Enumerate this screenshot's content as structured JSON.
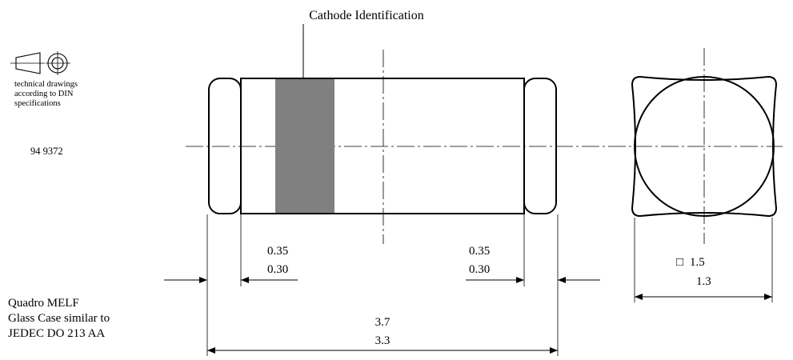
{
  "title": "Cathode Identification",
  "din_note": [
    "technical drawings",
    "according to DIN",
    "specifications"
  ],
  "drawing_number": "94 9372",
  "package_description": [
    "Quadro MELF",
    "Glass Case similar to",
    "JEDEC DO 213 AA"
  ],
  "dimensions": {
    "left_cap": {
      "max": "0.35",
      "min": "0.30"
    },
    "right_cap": {
      "max": "0.35",
      "min": "0.30"
    },
    "overall_length": {
      "max": "3.7",
      "min": "3.3"
    },
    "square_side": {
      "symbol": "□",
      "max": "1.5",
      "min": "1.3"
    }
  },
  "colors": {
    "band": "#808080",
    "line": "#000000"
  }
}
